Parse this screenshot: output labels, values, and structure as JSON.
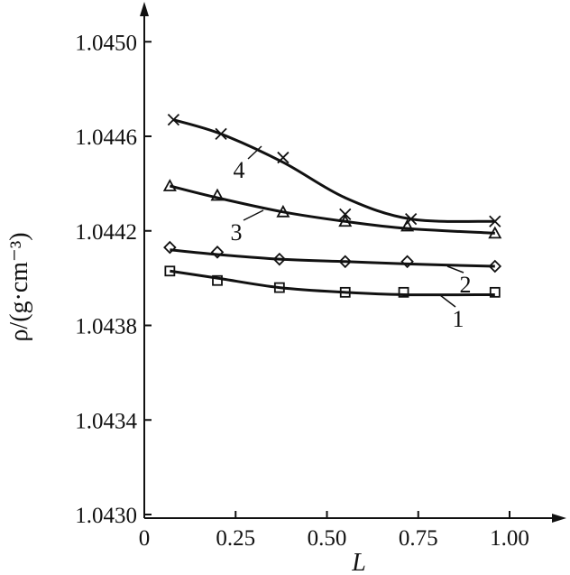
{
  "chart_data": {
    "type": "line",
    "xlabel": "L",
    "ylabel": "ρ/(g·cm⁻³)",
    "xlim": [
      0,
      1.08
    ],
    "ylim": [
      1.0429,
      1.0453
    ],
    "x_ticks": [
      0,
      0.25,
      0.5,
      0.75,
      1.0
    ],
    "x_tick_labels": [
      "0",
      "0.25",
      "0.50",
      "0.75",
      "1.00"
    ],
    "y_ticks": [
      1.043,
      1.0434,
      1.0438,
      1.0442,
      1.0446,
      1.045
    ],
    "y_tick_labels": [
      "1.0430",
      "1.0434",
      "1.0438",
      "1.0442",
      "1.0446",
      "1.0450"
    ],
    "grid": false,
    "legend": "none",
    "series": [
      {
        "name": "1",
        "marker": "square",
        "points": [
          [
            0.07,
            1.04403
          ],
          [
            0.2,
            1.04399
          ],
          [
            0.37,
            1.04396
          ],
          [
            0.55,
            1.04394
          ],
          [
            0.71,
            1.04394
          ],
          [
            0.96,
            1.04394
          ]
        ],
        "curve": [
          [
            0.07,
            1.04403
          ],
          [
            0.2,
            1.044
          ],
          [
            0.37,
            1.04396
          ],
          [
            0.55,
            1.04394
          ],
          [
            0.71,
            1.04393
          ],
          [
            0.96,
            1.04393
          ]
        ]
      },
      {
        "name": "2",
        "marker": "diamond",
        "points": [
          [
            0.07,
            1.04413
          ],
          [
            0.2,
            1.04411
          ],
          [
            0.37,
            1.04408
          ],
          [
            0.55,
            1.04407
          ],
          [
            0.72,
            1.04407
          ],
          [
            0.96,
            1.04405
          ]
        ],
        "curve": [
          [
            0.07,
            1.04412
          ],
          [
            0.2,
            1.0441
          ],
          [
            0.37,
            1.04408
          ],
          [
            0.55,
            1.04407
          ],
          [
            0.72,
            1.04406
          ],
          [
            0.96,
            1.04405
          ]
        ]
      },
      {
        "name": "3",
        "marker": "triangle",
        "points": [
          [
            0.07,
            1.04439
          ],
          [
            0.2,
            1.04435
          ],
          [
            0.38,
            1.04428
          ],
          [
            0.55,
            1.04424
          ],
          [
            0.72,
            1.04422
          ],
          [
            0.96,
            1.04419
          ]
        ],
        "curve": [
          [
            0.07,
            1.04439
          ],
          [
            0.2,
            1.04434
          ],
          [
            0.38,
            1.04428
          ],
          [
            0.55,
            1.04424
          ],
          [
            0.72,
            1.04421
          ],
          [
            0.96,
            1.04419
          ]
        ]
      },
      {
        "name": "4",
        "marker": "x",
        "points": [
          [
            0.08,
            1.04467
          ],
          [
            0.21,
            1.04461
          ],
          [
            0.38,
            1.04451
          ],
          [
            0.55,
            1.04427
          ],
          [
            0.73,
            1.04425
          ],
          [
            0.96,
            1.04424
          ]
        ],
        "curve": [
          [
            0.08,
            1.04467
          ],
          [
            0.21,
            1.04461
          ],
          [
            0.38,
            1.04449
          ],
          [
            0.55,
            1.04434
          ],
          [
            0.73,
            1.04425
          ],
          [
            0.96,
            1.04424
          ]
        ]
      }
    ],
    "annotations": [
      {
        "text": "1",
        "series": "1"
      },
      {
        "text": "2",
        "series": "2"
      },
      {
        "text": "3",
        "series": "3"
      },
      {
        "text": "4",
        "series": "4"
      }
    ]
  }
}
